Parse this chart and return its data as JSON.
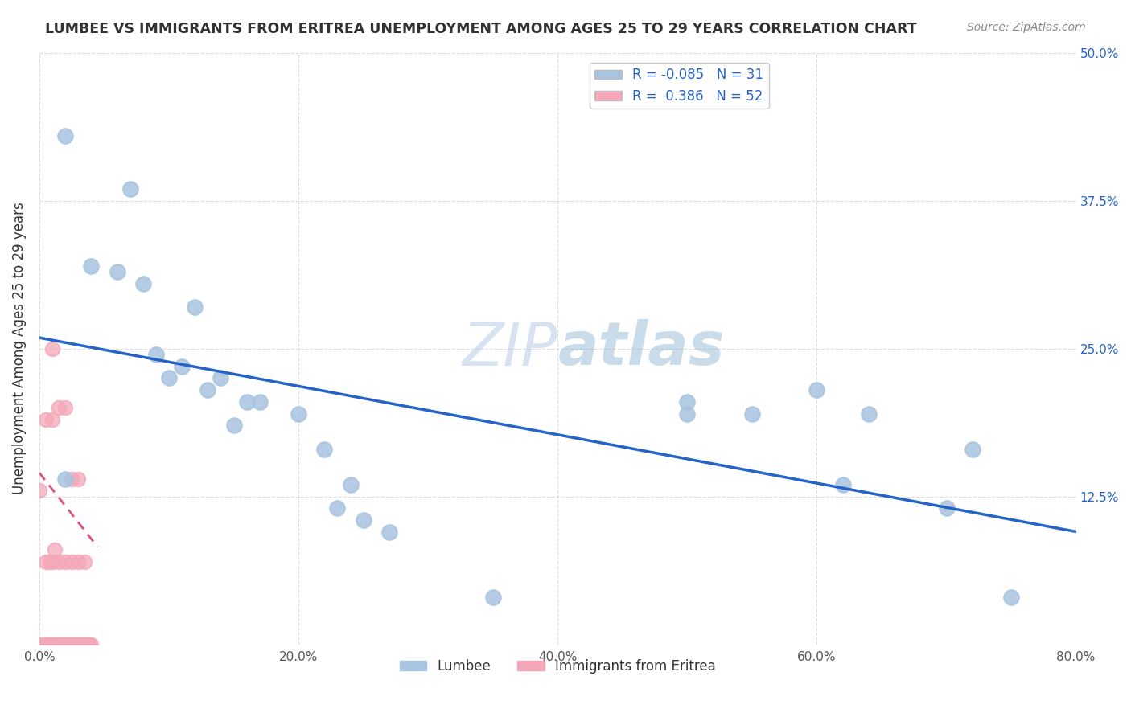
{
  "title": "LUMBEE VS IMMIGRANTS FROM ERITREA UNEMPLOYMENT AMONG AGES 25 TO 29 YEARS CORRELATION CHART",
  "source": "Source: ZipAtlas.com",
  "ylabel": "Unemployment Among Ages 25 to 29 years",
  "xlim": [
    0,
    0.8
  ],
  "ylim": [
    0,
    0.5
  ],
  "xticks": [
    0.0,
    0.2,
    0.4,
    0.6,
    0.8
  ],
  "yticks": [
    0.0,
    0.125,
    0.25,
    0.375,
    0.5
  ],
  "watermark_zip": "ZIP",
  "watermark_atlas": "atlas",
  "lumbee_R": -0.085,
  "lumbee_N": 31,
  "eritrea_R": 0.386,
  "eritrea_N": 52,
  "lumbee_color": "#a8c4e0",
  "eritrea_color": "#f4a7b9",
  "lumbee_trend_color": "#2563c7",
  "eritrea_trend_color": "#e05080",
  "lumbee_scatter": [
    [
      0.02,
      0.43
    ],
    [
      0.04,
      0.32
    ],
    [
      0.07,
      0.385
    ],
    [
      0.1,
      0.225
    ],
    [
      0.12,
      0.285
    ],
    [
      0.08,
      0.305
    ],
    [
      0.06,
      0.315
    ],
    [
      0.09,
      0.245
    ],
    [
      0.11,
      0.235
    ],
    [
      0.13,
      0.215
    ],
    [
      0.14,
      0.225
    ],
    [
      0.15,
      0.185
    ],
    [
      0.17,
      0.205
    ],
    [
      0.16,
      0.205
    ],
    [
      0.2,
      0.195
    ],
    [
      0.22,
      0.165
    ],
    [
      0.23,
      0.115
    ],
    [
      0.25,
      0.105
    ],
    [
      0.27,
      0.095
    ],
    [
      0.24,
      0.135
    ],
    [
      0.35,
      0.04
    ],
    [
      0.5,
      0.195
    ],
    [
      0.5,
      0.205
    ],
    [
      0.55,
      0.195
    ],
    [
      0.6,
      0.215
    ],
    [
      0.62,
      0.135
    ],
    [
      0.64,
      0.195
    ],
    [
      0.7,
      0.115
    ],
    [
      0.72,
      0.165
    ],
    [
      0.75,
      0.04
    ],
    [
      0.02,
      0.14
    ]
  ],
  "eritrea_scatter": [
    [
      0.0,
      0.0
    ],
    [
      0.003,
      0.0
    ],
    [
      0.005,
      0.0
    ],
    [
      0.007,
      0.0
    ],
    [
      0.008,
      0.0
    ],
    [
      0.009,
      0.0
    ],
    [
      0.01,
      0.0
    ],
    [
      0.012,
      0.0
    ],
    [
      0.013,
      0.0
    ],
    [
      0.014,
      0.0
    ],
    [
      0.015,
      0.0
    ],
    [
      0.016,
      0.0
    ],
    [
      0.017,
      0.0
    ],
    [
      0.018,
      0.0
    ],
    [
      0.019,
      0.0
    ],
    [
      0.02,
      0.0
    ],
    [
      0.022,
      0.0
    ],
    [
      0.023,
      0.0
    ],
    [
      0.024,
      0.0
    ],
    [
      0.025,
      0.0
    ],
    [
      0.026,
      0.0
    ],
    [
      0.027,
      0.0
    ],
    [
      0.028,
      0.0
    ],
    [
      0.029,
      0.0
    ],
    [
      0.03,
      0.0
    ],
    [
      0.031,
      0.0
    ],
    [
      0.032,
      0.0
    ],
    [
      0.033,
      0.0
    ],
    [
      0.034,
      0.0
    ],
    [
      0.035,
      0.0
    ],
    [
      0.036,
      0.0
    ],
    [
      0.037,
      0.0
    ],
    [
      0.038,
      0.0
    ],
    [
      0.039,
      0.0
    ],
    [
      0.04,
      0.0
    ],
    [
      0.0,
      0.13
    ],
    [
      0.005,
      0.19
    ],
    [
      0.01,
      0.19
    ],
    [
      0.015,
      0.2
    ],
    [
      0.02,
      0.2
    ],
    [
      0.025,
      0.14
    ],
    [
      0.03,
      0.14
    ],
    [
      0.01,
      0.25
    ],
    [
      0.005,
      0.07
    ],
    [
      0.008,
      0.07
    ],
    [
      0.01,
      0.07
    ],
    [
      0.012,
      0.08
    ],
    [
      0.015,
      0.07
    ],
    [
      0.02,
      0.07
    ],
    [
      0.025,
      0.07
    ],
    [
      0.03,
      0.07
    ],
    [
      0.035,
      0.07
    ]
  ]
}
